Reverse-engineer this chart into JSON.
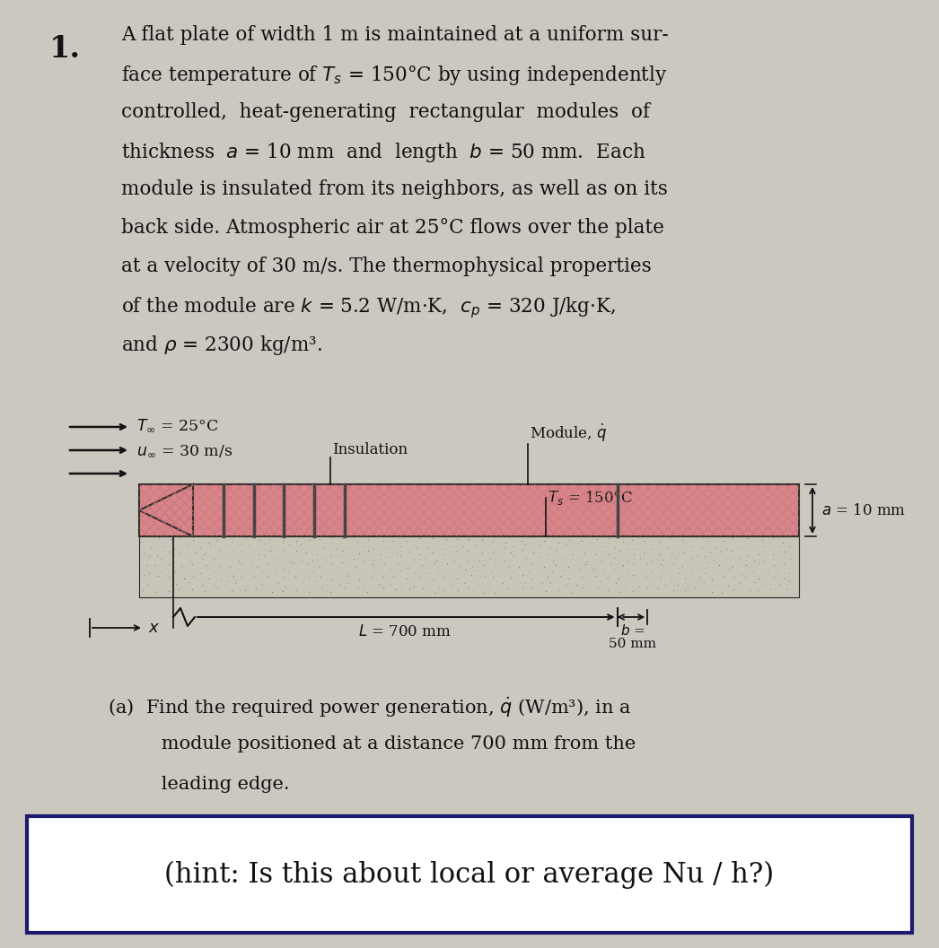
{
  "title_number": "1.",
  "main_lines": [
    "A flat plate of width 1 m is maintained at a uniform sur-",
    "face temperature of $T_s$ = 150°C by using independently",
    "controlled,  heat-generating  rectangular  modules  of",
    "thickness  $a$ = 10 mm  and  length  $b$ = 50 mm.  Each",
    "module is insulated from its neighbors, as well as on its",
    "back side. Atmospheric air at 25°C flows over the plate",
    "at a velocity of 30 m/s. The thermophysical properties",
    "of the module are $k$ = 5.2 W/m·K,  $c_p$ = 320 J/kg·K,",
    "and $\\rho$ = 2300 kg/m³."
  ],
  "label_T_inf": "$T_\\infty$ = 25°C",
  "label_u_inf": "$u_\\infty$ = 30 m/s",
  "label_insulation": "Insulation",
  "label_module": "Module, $\\dot{q}$",
  "label_Ts": "$T_s$ = 150°C",
  "label_a": "$a$ = 10 mm",
  "label_L": "$L$ = 700 mm",
  "label_b1": "$b$ =",
  "label_b2": "50 mm",
  "label_x": "$x$",
  "part_a_line1": "(a)  Find the required power generation, $\\dot{q}$ (W/m³), in a",
  "part_a_line2": "      module positioned at a distance 700 mm from the",
  "part_a_line3": "      leading edge.",
  "hint_text": "(hint: Is this about local or average Nu / h?)",
  "bg_color": "#cbc8c0",
  "plate_fill_color": "#d9848a",
  "plate_hatch_color": "#c07070",
  "plate_edge_color": "#222222",
  "insulation_color": "#c8c4b8",
  "hint_box_bg": "#ffffff",
  "hint_box_edge": "#1a1a6e",
  "text_color": "#111111",
  "arrow_color": "#111111",
  "main_fontsize": 15.5,
  "title_fontsize": 24,
  "diagram_fontsize": 12.5,
  "hint_fontsize": 22,
  "part_a_fontsize": 15.0
}
